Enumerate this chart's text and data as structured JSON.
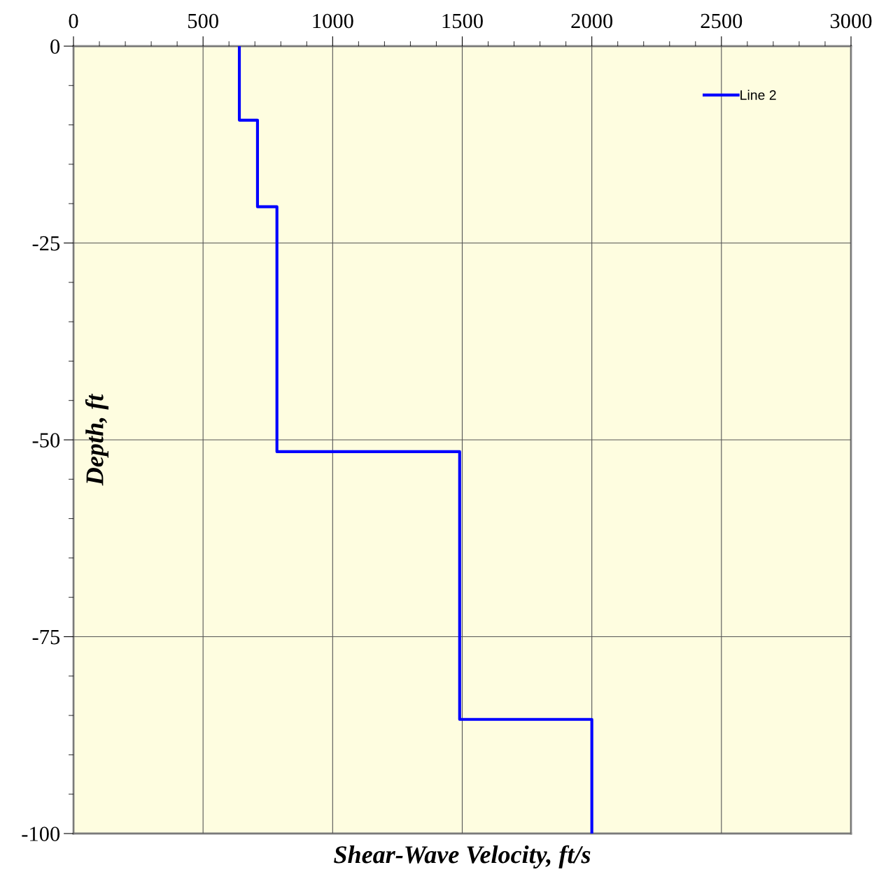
{
  "chart_data": {
    "type": "line",
    "xlabel": "Shear-Wave Velocity, ft/s",
    "ylabel": "Depth, ft",
    "series": [
      {
        "name": "Line 2",
        "color": "#0000ff",
        "x": [
          640,
          640,
          710,
          710,
          785,
          785,
          1490,
          1490,
          2000,
          2000
        ],
        "values": [
          0,
          -9.4,
          -9.4,
          -20.4,
          -20.4,
          -51.5,
          -51.5,
          -85.5,
          -85.5,
          -100
        ]
      }
    ],
    "xlim": [
      0,
      3000
    ],
    "ylim": [
      -100,
      0
    ],
    "xticks": [
      0,
      {
        "value": 100,
        "label": null
      },
      {
        "value": 200,
        "label": null
      },
      {
        "value": 300,
        "label": null
      },
      {
        "value": 400,
        "label": null
      },
      500,
      {
        "value": 600,
        "label": null
      },
      {
        "value": 700,
        "label": null
      },
      {
        "value": 800,
        "label": null
      },
      {
        "value": 900,
        "label": null
      },
      1000,
      {
        "value": 1100,
        "label": null
      },
      {
        "value": 1200,
        "label": null
      },
      {
        "value": 1300,
        "label": null
      },
      {
        "value": 1400,
        "label": null
      },
      1500,
      {
        "value": 1600,
        "label": null
      },
      {
        "value": 1700,
        "label": null
      },
      {
        "value": 1800,
        "label": null
      },
      {
        "value": 1900,
        "label": null
      },
      2000,
      {
        "value": 2100,
        "label": null
      },
      {
        "value": 2200,
        "label": null
      },
      {
        "value": 2300,
        "label": null
      },
      {
        "value": 2400,
        "label": null
      },
      2500,
      {
        "value": 2600,
        "label": null
      },
      {
        "value": 2700,
        "label": null
      },
      {
        "value": 2800,
        "label": null
      },
      {
        "value": 2900,
        "label": null
      },
      3000
    ],
    "yticks": [
      -100,
      {
        "value": -95,
        "label": null
      },
      {
        "value": -90,
        "label": null
      },
      {
        "value": -85,
        "label": null
      },
      {
        "value": -80,
        "label": null
      },
      -75,
      {
        "value": -70,
        "label": null
      },
      {
        "value": -65,
        "label": null
      },
      {
        "value": -60,
        "label": null
      },
      {
        "value": -55,
        "label": null
      },
      -50,
      {
        "value": -45,
        "label": null
      },
      {
        "value": -40,
        "label": null
      },
      {
        "value": -35,
        "label": null
      },
      {
        "value": -30,
        "label": null
      },
      -25,
      {
        "value": -20,
        "label": null
      },
      {
        "value": -15,
        "label": null
      },
      {
        "value": -10,
        "label": null
      },
      {
        "value": -5,
        "label": null
      },
      0
    ],
    "grid": true,
    "legend": "top right",
    "marker": "none",
    "line_style": "solid"
  }
}
